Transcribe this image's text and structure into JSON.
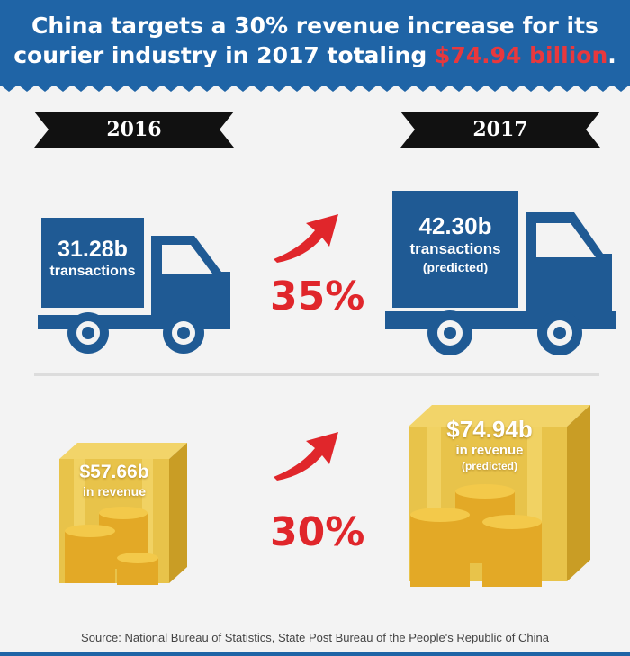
{
  "header": {
    "title_line1": "China targets a 30% revenue increase for its",
    "title_line2_pre": "courier industry in 2017 totaling ",
    "title_highlight": "$74.94 billion",
    "title_line2_post": "."
  },
  "years": {
    "left": "2016",
    "right": "2017"
  },
  "transactions": {
    "left": {
      "value": "31.28b",
      "label": "transactions"
    },
    "right": {
      "value": "42.30b",
      "label": "transactions",
      "note": "(predicted)"
    },
    "growth": "35%"
  },
  "revenue": {
    "left": {
      "value": "$57.66b",
      "label": "in revenue"
    },
    "right": {
      "value": "$74.94b",
      "label": "in revenue",
      "note": "(predicted)"
    },
    "growth": "30%"
  },
  "source": "Source: National Bureau of Statistics, State Post Bureau of the People's Republic of China",
  "colors": {
    "header_blue": "#1f64a6",
    "truck_blue": "#1f5a94",
    "accent_red": "#e0262b",
    "crate_gold": "#e8c34a"
  }
}
